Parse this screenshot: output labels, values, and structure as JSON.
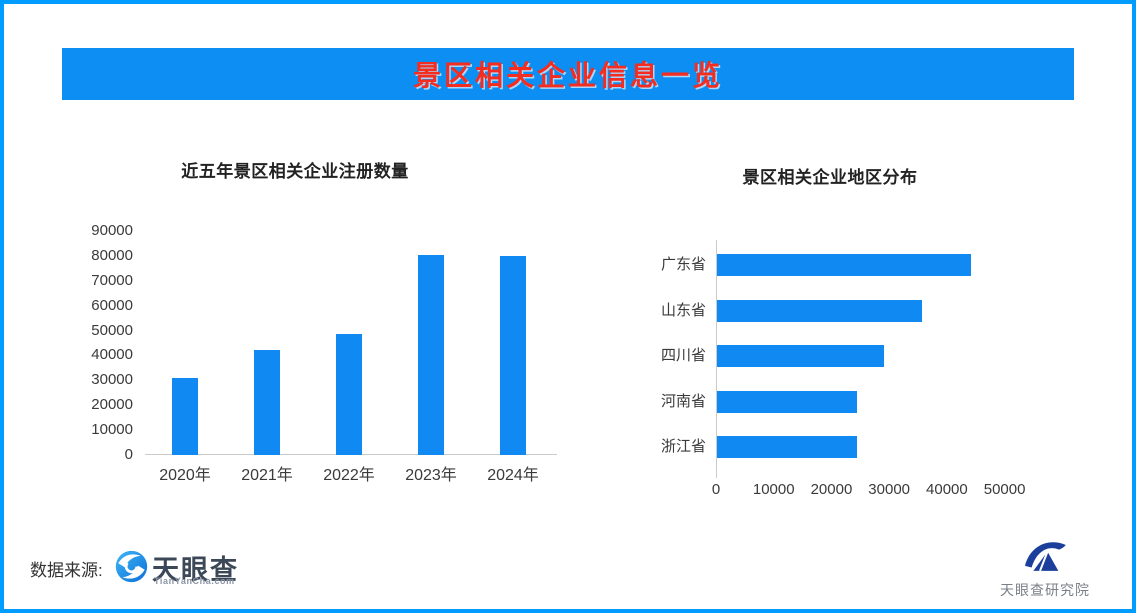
{
  "banner": {
    "title": "景区相关企业信息一览"
  },
  "footer": {
    "source_label": "数据来源:",
    "tianyancha": {
      "name": "天眼查",
      "domain": "TianYanCha.com",
      "icon": "tianyancha-eye-icon"
    },
    "research": {
      "name": "天眼查研究院",
      "icon": "tianyancha-research-icon"
    }
  },
  "colors": {
    "border": "#009CFF",
    "banner_bg": "#0C8EF2",
    "banner_text": "#F42D20",
    "bar": "#1189F2",
    "axis_line": "#CBCBCB",
    "tick_text": "#3A3A3A",
    "chart_title_text": "#222222"
  },
  "chart_data": [
    {
      "type": "bar",
      "title": "近五年景区相关企业注册数量",
      "categories": [
        "2020年",
        "2021年",
        "2022年",
        "2023年",
        "2024年"
      ],
      "values": [
        31000,
        42000,
        48800,
        80500,
        80000
      ],
      "xlabel": "",
      "ylabel": "",
      "ylim": [
        0,
        90000
      ],
      "yticks": [
        0,
        10000,
        20000,
        30000,
        40000,
        50000,
        60000,
        70000,
        80000,
        90000
      ],
      "grid": false,
      "legend": "none",
      "orientation": "vertical"
    },
    {
      "type": "bar",
      "title": "景区相关企业地区分布",
      "categories": [
        "广东省",
        "山东省",
        "四川省",
        "河南省",
        "浙江省"
      ],
      "values": [
        44000,
        35500,
        29000,
        24200,
        24200
      ],
      "xlabel": "",
      "ylabel": "",
      "xlim": [
        0,
        50000
      ],
      "xticks": [
        0,
        10000,
        20000,
        30000,
        40000,
        50000
      ],
      "grid": false,
      "legend": "none",
      "orientation": "horizontal"
    }
  ]
}
